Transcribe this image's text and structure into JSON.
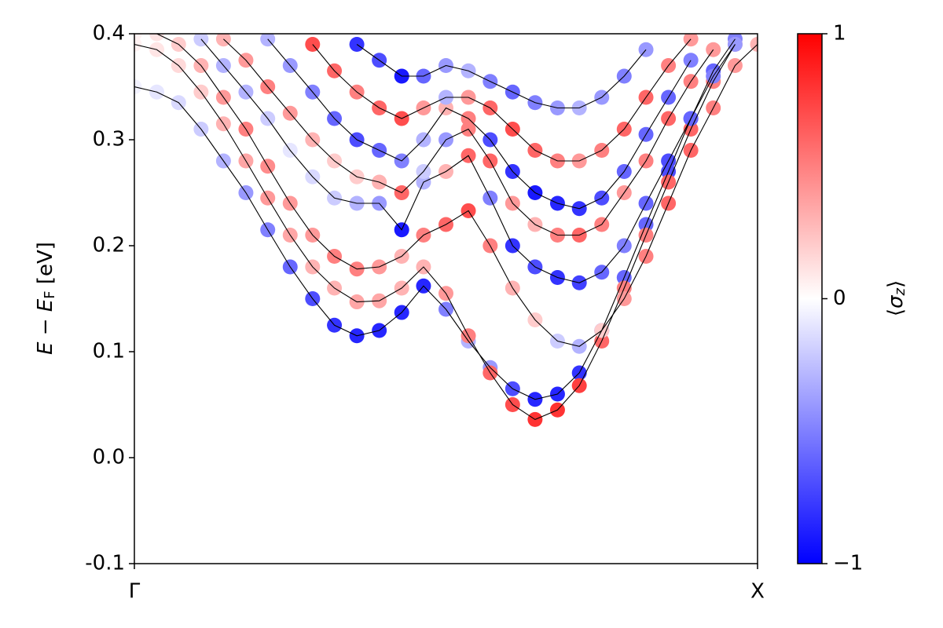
{
  "chart_data": {
    "type": "band_scatter",
    "xlim": [
      0,
      1
    ],
    "xticks": [
      {
        "value": 0,
        "label": "Γ"
      },
      {
        "value": 1,
        "label": "X"
      }
    ],
    "ylim": [
      -0.1,
      0.4
    ],
    "yticks": [
      {
        "value": -0.1,
        "label": "-0.1"
      },
      {
        "value": 0,
        "label": "0.0"
      },
      0.1,
      0.2,
      0.3,
      0.4
    ],
    "ylabel": [
      "E",
      " − ",
      "E",
      "F",
      " [eV]"
    ],
    "colorbar": {
      "label": [
        "⟨",
        "σ",
        "z",
        "⟩"
      ],
      "clim": [
        -1,
        1
      ],
      "ticks": [
        {
          "value": -1,
          "label": "−1"
        },
        0,
        1
      ],
      "cmap": [
        "#0000ff",
        "#ffffff",
        "#ff0000"
      ]
    },
    "line_color": "#000000",
    "x": [
      0,
      0.036,
      0.071,
      0.107,
      0.143,
      0.179,
      0.214,
      0.25,
      0.286,
      0.321,
      0.357,
      0.393,
      0.429,
      0.464,
      0.5,
      0.536,
      0.571,
      0.607,
      0.643,
      0.679,
      0.714,
      0.75,
      0.786,
      0.821,
      0.857,
      0.893,
      0.929,
      0.964,
      1
    ],
    "series": [
      {
        "values": [
          0.35,
          0.345,
          0.335,
          0.31,
          0.28,
          0.25,
          0.215,
          0.18,
          0.15,
          0.125,
          0.115,
          0.12,
          0.137,
          0.162,
          0.14,
          0.11,
          0.085,
          0.065,
          0.055,
          0.06,
          0.08,
          0.12,
          0.17,
          0.22,
          0.27,
          0.32,
          0.365,
          0.395,
          null
        ],
        "sigma": [
          -0.05,
          -0.1,
          -0.15,
          -0.2,
          -0.3,
          -0.4,
          -0.5,
          -0.6,
          -0.7,
          -0.8,
          -0.85,
          -0.85,
          -0.85,
          -0.85,
          -0.5,
          -0.3,
          -0.4,
          -0.7,
          -0.85,
          -0.85,
          -0.8,
          -0.7,
          -0.6,
          -0.6,
          -0.7,
          -0.7,
          -0.6,
          -0.5,
          null
        ]
      },
      {
        "values": [
          0.39,
          0.385,
          0.37,
          0.345,
          0.315,
          0.28,
          0.245,
          0.21,
          0.18,
          0.16,
          0.147,
          0.148,
          0.16,
          0.18,
          0.155,
          0.115,
          0.08,
          0.05,
          0.036,
          0.045,
          0.068,
          0.11,
          0.16,
          0.21,
          0.26,
          0.31,
          0.355,
          0.39,
          null
        ],
        "sigma": [
          0.05,
          0.1,
          0.15,
          0.2,
          0.3,
          0.35,
          0.4,
          0.35,
          0.3,
          0.3,
          0.35,
          0.35,
          0.3,
          0.3,
          0.4,
          0.5,
          0.6,
          0.7,
          0.8,
          0.8,
          0.75,
          0.6,
          0.5,
          0.5,
          0.6,
          0.6,
          0.5,
          0.4,
          null
        ]
      },
      {
        "values": [
          0.4,
          0.4,
          0.39,
          0.37,
          0.34,
          0.31,
          0.275,
          0.24,
          0.21,
          0.19,
          0.178,
          0.18,
          0.19,
          0.21,
          0.22,
          0.233,
          0.2,
          0.16,
          0.13,
          0.11,
          0.105,
          0.12,
          0.15,
          0.19,
          0.24,
          0.29,
          0.33,
          0.37,
          0.39
        ],
        "sigma": [
          0.05,
          0.1,
          0.2,
          0.3,
          0.4,
          0.5,
          0.45,
          0.4,
          0.4,
          0.5,
          0.5,
          0.4,
          0.3,
          0.5,
          0.6,
          0.7,
          0.5,
          0.3,
          0.2,
          -0.2,
          -0.3,
          0.2,
          0.4,
          0.5,
          0.6,
          0.6,
          0.5,
          0.4,
          0.3
        ]
      },
      {
        "values": [
          null,
          null,
          null,
          0.395,
          0.37,
          0.345,
          0.32,
          0.29,
          0.265,
          0.245,
          0.24,
          0.24,
          0.215,
          0.26,
          0.27,
          0.285,
          0.245,
          0.2,
          0.18,
          0.17,
          0.165,
          0.175,
          0.2,
          0.24,
          0.28,
          0.32,
          0.36,
          0.39,
          null
        ],
        "sigma": [
          null,
          null,
          null,
          -0.2,
          -0.3,
          -0.3,
          -0.2,
          -0.1,
          -0.15,
          -0.2,
          -0.3,
          -0.4,
          -0.9,
          -0.3,
          0.3,
          0.6,
          -0.5,
          -0.8,
          -0.7,
          -0.8,
          -0.75,
          -0.6,
          -0.5,
          -0.6,
          -0.7,
          -0.6,
          -0.5,
          -0.4,
          null
        ]
      },
      {
        "values": [
          null,
          null,
          null,
          null,
          0.395,
          0.375,
          0.35,
          0.325,
          0.3,
          0.28,
          0.265,
          0.26,
          0.25,
          0.27,
          0.3,
          0.31,
          0.28,
          0.24,
          0.22,
          0.21,
          0.21,
          0.22,
          0.25,
          0.28,
          0.32,
          0.355,
          0.385,
          null,
          null
        ],
        "sigma": [
          null,
          null,
          null,
          null,
          0.3,
          0.4,
          0.5,
          0.4,
          0.3,
          0.2,
          0.2,
          0.3,
          0.6,
          -0.2,
          -0.4,
          0.5,
          0.6,
          0.4,
          0.3,
          0.5,
          0.6,
          0.5,
          0.4,
          0.5,
          0.6,
          0.5,
          0.4,
          null,
          null
        ]
      },
      {
        "values": [
          null,
          null,
          null,
          null,
          null,
          null,
          0.395,
          0.37,
          0.345,
          0.32,
          0.3,
          0.29,
          0.28,
          0.3,
          0.33,
          0.32,
          0.3,
          0.27,
          0.25,
          0.24,
          0.235,
          0.245,
          0.27,
          0.305,
          0.34,
          0.375,
          null,
          null,
          null
        ],
        "sigma": [
          null,
          null,
          null,
          null,
          null,
          null,
          -0.3,
          -0.4,
          -0.5,
          -0.6,
          -0.7,
          -0.6,
          -0.5,
          -0.3,
          0.3,
          0.5,
          -0.7,
          -0.8,
          -0.9,
          -0.85,
          -0.8,
          -0.7,
          -0.6,
          -0.6,
          -0.6,
          -0.5,
          null,
          null,
          null
        ]
      },
      {
        "values": [
          null,
          null,
          null,
          null,
          null,
          null,
          null,
          null,
          0.39,
          0.365,
          0.345,
          0.33,
          0.32,
          0.33,
          0.34,
          0.34,
          0.33,
          0.31,
          0.29,
          0.28,
          0.28,
          0.29,
          0.31,
          0.34,
          0.37,
          0.395,
          null,
          null,
          null
        ],
        "sigma": [
          null,
          null,
          null,
          null,
          null,
          null,
          null,
          null,
          0.7,
          0.6,
          0.5,
          0.6,
          0.7,
          0.4,
          -0.3,
          0.4,
          0.6,
          0.7,
          0.6,
          0.5,
          0.4,
          0.5,
          0.6,
          0.6,
          0.5,
          0.4,
          null,
          null,
          null
        ]
      },
      {
        "values": [
          null,
          null,
          null,
          null,
          null,
          null,
          null,
          null,
          null,
          null,
          0.39,
          0.375,
          0.36,
          0.36,
          0.37,
          0.365,
          0.355,
          0.345,
          0.335,
          0.33,
          0.33,
          0.34,
          0.36,
          0.385,
          null,
          null,
          null,
          null,
          null
        ],
        "sigma": [
          null,
          null,
          null,
          null,
          null,
          null,
          null,
          null,
          null,
          null,
          -0.8,
          -0.7,
          -0.9,
          -0.6,
          -0.4,
          -0.3,
          -0.5,
          -0.6,
          -0.5,
          -0.4,
          -0.3,
          -0.4,
          -0.5,
          -0.4,
          null,
          null,
          null,
          null,
          null
        ]
      }
    ]
  }
}
